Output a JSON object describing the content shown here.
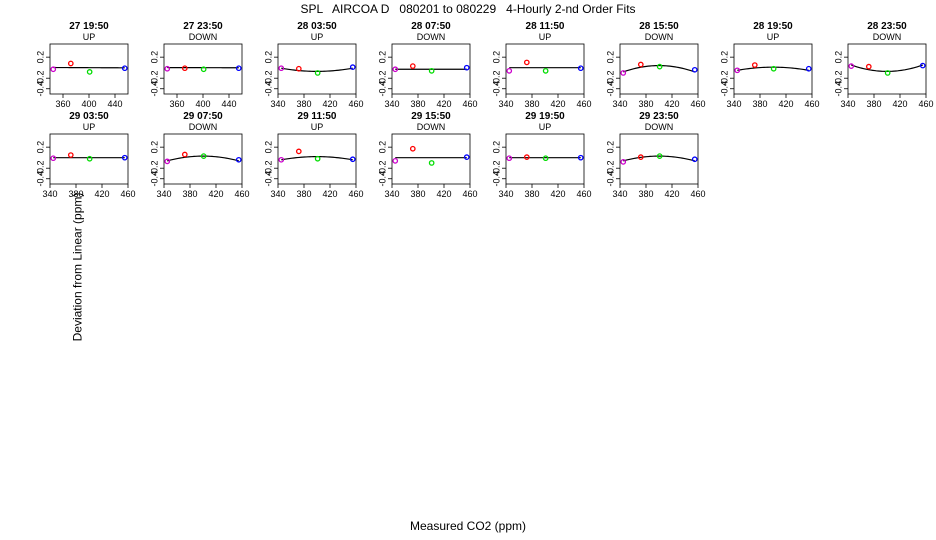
{
  "header": {
    "title": "SPL   AIRCOA D   080201 to 080229   4-Hourly 2-nd Order Fits"
  },
  "axes": {
    "xlabel": "Measured CO2 (ppm)",
    "ylabel": "Deviation from Linear (ppm)"
  },
  "colors": {
    "red": "#ff0000",
    "green": "#00dd00",
    "blue": "#0000ff",
    "purple": "#cc00cc",
    "fit": "#000000"
  },
  "chart_data": [
    {
      "type": "scatter",
      "title": "27 19:50",
      "subtitle": "UP",
      "xlim": [
        340,
        460
      ],
      "ylim": [
        -0.5,
        0.45
      ],
      "xticks": [
        360,
        400,
        440
      ],
      "yticks": [
        -0.4,
        -0.2,
        0.2
      ],
      "x": [
        345,
        372,
        401,
        455
      ],
      "y": [
        -0.03,
        0.08,
        -0.08,
        -0.01
      ],
      "point_colors": [
        "purple",
        "red",
        "green",
        "blue"
      ],
      "fit": [
        0.0003,
        -5e-05,
        0.0
      ]
    },
    {
      "type": "scatter",
      "title": "27 23:50",
      "subtitle": "DOWN",
      "xlim": [
        340,
        460
      ],
      "ylim": [
        -0.5,
        0.45
      ],
      "xticks": [
        360,
        400,
        440
      ],
      "yticks": [
        -0.4,
        -0.2,
        0.2
      ],
      "x": [
        345,
        372,
        401,
        455
      ],
      "y": [
        -0.02,
        -0.01,
        -0.03,
        -0.01
      ],
      "point_colors": [
        "purple",
        "red",
        "green",
        "blue"
      ],
      "fit": [
        0.0003,
        -3e-05,
        0.0
      ]
    },
    {
      "type": "scatter",
      "title": "28 03:50",
      "subtitle": "UP",
      "xlim": [
        340,
        460
      ],
      "ylim": [
        -0.5,
        0.45
      ],
      "xticks": [
        340,
        380,
        420,
        460
      ],
      "yticks": [
        -0.4,
        -0.2,
        0.2
      ],
      "x": [
        345,
        372,
        401,
        455
      ],
      "y": [
        -0.01,
        -0.02,
        -0.1,
        0.01
      ],
      "point_colors": [
        "purple",
        "red",
        "green",
        "blue"
      ],
      "fit": [
        -0.07,
        0.0,
        2e-05
      ]
    },
    {
      "type": "scatter",
      "title": "28 07:50",
      "subtitle": "DOWN",
      "xlim": [
        340,
        460
      ],
      "ylim": [
        -0.5,
        0.45
      ],
      "xticks": [
        340,
        380,
        420,
        460
      ],
      "yticks": [
        -0.4,
        -0.2,
        0.2
      ],
      "x": [
        345,
        372,
        401,
        455
      ],
      "y": [
        -0.03,
        0.03,
        -0.06,
        0.0
      ],
      "point_colors": [
        "purple",
        "red",
        "green",
        "blue"
      ],
      "fit": [
        -0.03,
        0.0,
        0.0
      ]
    },
    {
      "type": "scatter",
      "title": "28 11:50",
      "subtitle": "UP",
      "xlim": [
        340,
        460
      ],
      "ylim": [
        -0.5,
        0.45
      ],
      "xticks": [
        340,
        380,
        420,
        460
      ],
      "yticks": [
        -0.4,
        -0.2,
        0.2
      ],
      "x": [
        345,
        372,
        401,
        455
      ],
      "y": [
        -0.06,
        0.1,
        -0.06,
        -0.01
      ],
      "point_colors": [
        "purple",
        "red",
        "green",
        "blue"
      ],
      "fit": [
        0.0,
        0.0,
        0.0
      ]
    },
    {
      "type": "scatter",
      "title": "28 15:50",
      "subtitle": "DOWN",
      "xlim": [
        340,
        460
      ],
      "ylim": [
        -0.5,
        0.45
      ],
      "xticks": [
        340,
        380,
        420,
        460
      ],
      "yticks": [
        -0.4,
        -0.2,
        0.2
      ],
      "x": [
        345,
        372,
        401,
        455
      ],
      "y": [
        -0.1,
        0.06,
        0.02,
        -0.04
      ],
      "point_colors": [
        "purple",
        "red",
        "green",
        "blue"
      ],
      "fit": [
        0.04,
        0.0,
        -4e-05
      ]
    },
    {
      "type": "scatter",
      "title": "28 19:50",
      "subtitle": "UP",
      "xlim": [
        340,
        460
      ],
      "ylim": [
        -0.5,
        0.45
      ],
      "xticks": [
        340,
        380,
        420,
        460
      ],
      "yticks": [
        -0.4,
        -0.2,
        0.2
      ],
      "x": [
        345,
        372,
        401,
        455
      ],
      "y": [
        -0.05,
        0.05,
        -0.02,
        -0.02
      ],
      "point_colors": [
        "purple",
        "red",
        "green",
        "blue"
      ],
      "fit": [
        0.01,
        0.0,
        -2e-05
      ]
    },
    {
      "type": "scatter",
      "title": "28 23:50",
      "subtitle": "DOWN",
      "xlim": [
        340,
        460
      ],
      "ylim": [
        -0.5,
        0.45
      ],
      "xticks": [
        340,
        380,
        420,
        460
      ],
      "yticks": [
        -0.4,
        -0.2,
        0.2
      ],
      "x": [
        345,
        372,
        401,
        455
      ],
      "y": [
        0.03,
        0.02,
        -0.1,
        0.04
      ],
      "point_colors": [
        "purple",
        "red",
        "green",
        "blue"
      ],
      "fit": [
        -0.07,
        0.0,
        4e-05
      ]
    },
    {
      "type": "scatter",
      "title": "29 03:50",
      "subtitle": "UP",
      "xlim": [
        340,
        460
      ],
      "ylim": [
        -0.5,
        0.45
      ],
      "xticks": [
        340,
        380,
        420,
        460
      ],
      "yticks": [
        -0.4,
        -0.2,
        0.2
      ],
      "x": [
        345,
        372,
        401,
        455
      ],
      "y": [
        -0.01,
        0.05,
        -0.02,
        0.0
      ],
      "point_colors": [
        "purple",
        "red",
        "green",
        "blue"
      ],
      "fit": [
        0.0,
        0.0,
        0.0
      ]
    },
    {
      "type": "scatter",
      "title": "29 07:50",
      "subtitle": "DOWN",
      "xlim": [
        340,
        460
      ],
      "ylim": [
        -0.5,
        0.45
      ],
      "xticks": [
        340,
        380,
        420,
        460
      ],
      "yticks": [
        -0.4,
        -0.2,
        0.2
      ],
      "x": [
        345,
        372,
        401,
        455
      ],
      "y": [
        -0.07,
        0.06,
        0.03,
        -0.04
      ],
      "point_colors": [
        "purple",
        "red",
        "green",
        "blue"
      ],
      "fit": [
        0.03,
        0.0,
        -3e-05
      ]
    },
    {
      "type": "scatter",
      "title": "29 11:50",
      "subtitle": "UP",
      "xlim": [
        340,
        460
      ],
      "ylim": [
        -0.5,
        0.45
      ],
      "xticks": [
        340,
        380,
        420,
        460
      ],
      "yticks": [
        -0.4,
        -0.2,
        0.2
      ],
      "x": [
        345,
        372,
        401,
        455
      ],
      "y": [
        -0.04,
        0.12,
        -0.02,
        -0.03
      ],
      "point_colors": [
        "purple",
        "red",
        "green",
        "blue"
      ],
      "fit": [
        0.02,
        0.0,
        -2e-05
      ]
    },
    {
      "type": "scatter",
      "title": "29 15:50",
      "subtitle": "DOWN",
      "xlim": [
        340,
        460
      ],
      "ylim": [
        -0.5,
        0.45
      ],
      "xticks": [
        340,
        380,
        420,
        460
      ],
      "yticks": [
        -0.4,
        -0.2,
        0.2
      ],
      "x": [
        345,
        372,
        401,
        455
      ],
      "y": [
        -0.06,
        0.17,
        -0.1,
        0.01
      ],
      "point_colors": [
        "purple",
        "red",
        "green",
        "blue"
      ],
      "fit": [
        0.0,
        0.0,
        0.0
      ]
    },
    {
      "type": "scatter",
      "title": "29 19:50",
      "subtitle": "UP",
      "xlim": [
        340,
        460
      ],
      "ylim": [
        -0.5,
        0.45
      ],
      "xticks": [
        340,
        380,
        420,
        460
      ],
      "yticks": [
        -0.4,
        -0.2,
        0.2
      ],
      "x": [
        345,
        372,
        401,
        455
      ],
      "y": [
        -0.01,
        0.01,
        -0.01,
        0.0
      ],
      "point_colors": [
        "purple",
        "red",
        "green",
        "blue"
      ],
      "fit": [
        0.0,
        0.0,
        0.0
      ]
    },
    {
      "type": "scatter",
      "title": "29 23:50",
      "subtitle": "DOWN",
      "xlim": [
        340,
        460
      ],
      "ylim": [
        -0.5,
        0.45
      ],
      "xticks": [
        340,
        380,
        420,
        460
      ],
      "yticks": [
        -0.4,
        -0.2,
        0.2
      ],
      "x": [
        345,
        372,
        401,
        455
      ],
      "y": [
        -0.08,
        0.01,
        0.03,
        -0.03
      ],
      "point_colors": [
        "purple",
        "red",
        "green",
        "blue"
      ],
      "fit": [
        0.03,
        0.0,
        -3e-05
      ]
    }
  ]
}
